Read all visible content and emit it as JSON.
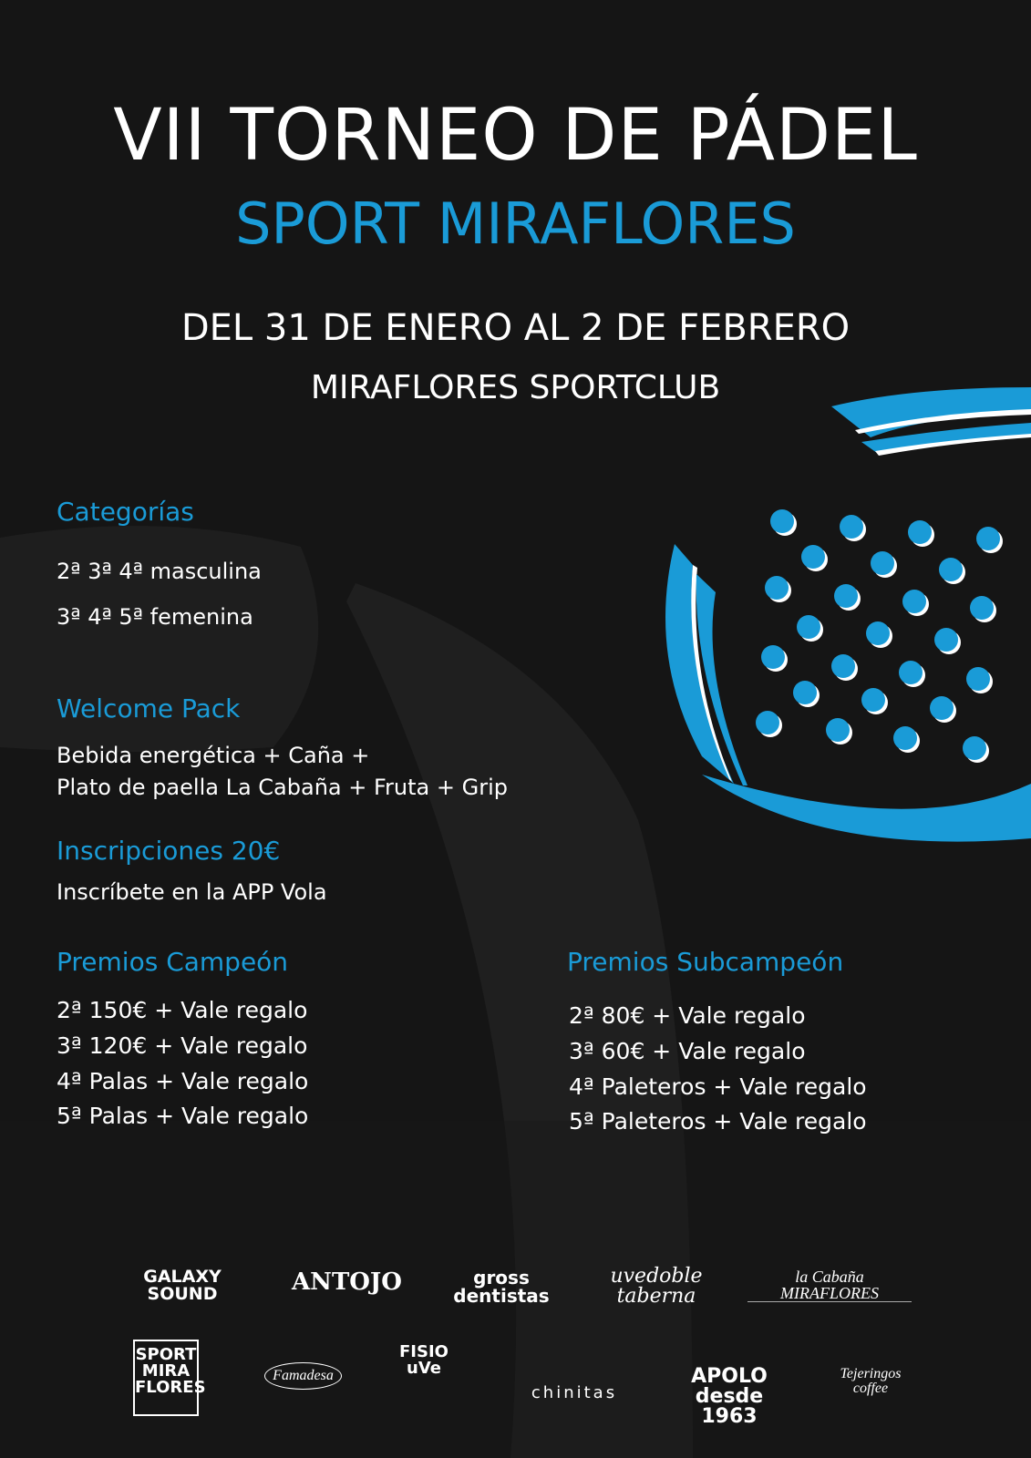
{
  "header": {
    "title": "VII TORNEO DE PÁDEL",
    "subtitle": "SPORT MIRAFLORES",
    "dates": "DEL 31 DE ENERO AL 2 DE FEBRERO",
    "venue": "MIRAFLORES SPORTCLUB"
  },
  "categorias": {
    "heading": "Categorías",
    "items": [
      "2ª 3ª 4ª masculina",
      "3ª 4ª 5ª femenina"
    ]
  },
  "welcome": {
    "heading": "Welcome Pack",
    "lines": [
      "Bebida energética + Caña +",
      "Plato de paella La Cabaña + Fruta + Grip"
    ]
  },
  "inscripciones": {
    "heading": "Inscripciones 20€",
    "text": "Inscríbete en la APP Vola"
  },
  "premios_campeon": {
    "heading": "Premios Campeón",
    "items": [
      "2ª 150€ + Vale regalo",
      "3ª 120€ + Vale regalo",
      "4ª Palas + Vale regalo",
      "5ª Palas + Vale regalo"
    ]
  },
  "premios_subcampeon": {
    "heading": "Premios Subcampeón",
    "items": [
      "2ª 80€ + Vale regalo",
      "3ª 60€ + Vale regalo",
      "4ª Paleteros + Vale regalo",
      "5ª Paleteros + Vale regalo"
    ]
  },
  "sponsors": [
    "GALAXY SOUND",
    "ANTOJO",
    "gross dentistas",
    "uvedoble taberna",
    "la Cabaña MIRAFLORES",
    "SPORT MIRA FLORES",
    "Famadesa",
    "FISIO uVe",
    "chinitas",
    "APOLO desde 1963",
    "Tejeringos coffee"
  ],
  "colors": {
    "accent": "#1a9bd7",
    "background": "#151515"
  }
}
